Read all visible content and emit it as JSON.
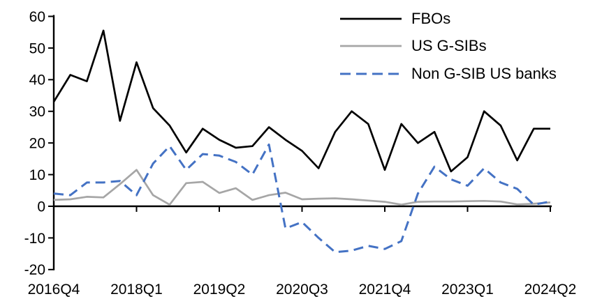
{
  "chart_data": {
    "type": "line",
    "title": "",
    "xlabel": "",
    "ylabel": "",
    "ylim": [
      -20,
      60
    ],
    "grid": false,
    "legend_position": "top-right",
    "background": "#ffffff",
    "axis_color": "#000000",
    "yticks": [
      60,
      50,
      40,
      30,
      20,
      10,
      0,
      -10,
      -20
    ],
    "xtick_labels": [
      "2016Q4",
      "2018Q1",
      "2019Q2",
      "2020Q3",
      "2021Q4",
      "2023Q1",
      "2024Q2"
    ],
    "x_categories": [
      "2016Q4",
      "2017Q1",
      "2017Q2",
      "2017Q3",
      "2017Q4",
      "2018Q1",
      "2018Q2",
      "2018Q3",
      "2018Q4",
      "2019Q1",
      "2019Q2",
      "2019Q3",
      "2019Q4",
      "2020Q1",
      "2020Q2",
      "2020Q3",
      "2020Q4",
      "2021Q1",
      "2021Q2",
      "2021Q3",
      "2021Q4",
      "2022Q1",
      "2022Q2",
      "2022Q3",
      "2022Q4",
      "2023Q1",
      "2023Q2",
      "2023Q3",
      "2023Q4",
      "2024Q1",
      "2024Q2"
    ],
    "series": [
      {
        "name": "FBOs",
        "color": "#000000",
        "style": "solid",
        "values": [
          33,
          41.5,
          39.5,
          55.5,
          27,
          45.5,
          31,
          25.5,
          17,
          24.5,
          21,
          18.5,
          19,
          25,
          21,
          17.5,
          12,
          23.5,
          30,
          26,
          11.5,
          26,
          20,
          23.5,
          11,
          15.5,
          30,
          25.5,
          14.5,
          24.5,
          24.5
        ]
      },
      {
        "name": "US G-SIBs",
        "color": "#a6a6a6",
        "style": "solid",
        "values": [
          2,
          2.2,
          3,
          2.8,
          7,
          11.5,
          3.5,
          0.5,
          7.3,
          7.7,
          4.2,
          5.7,
          2,
          3.5,
          4.3,
          2.2,
          2.4,
          2.5,
          2.2,
          1.8,
          1.4,
          0.5,
          1.4,
          1.5,
          1.5,
          1.6,
          1.7,
          1.5,
          0.6,
          0.8,
          1.2
        ]
      },
      {
        "name": "Non G-SIB US banks",
        "color": "#4472c4",
        "style": "dashed",
        "values": [
          4,
          3.5,
          7.5,
          7.5,
          8,
          3.5,
          13.5,
          19,
          11.5,
          16.5,
          16,
          14,
          10,
          19.5,
          -7,
          -5,
          -10,
          -14.5,
          -14,
          -12.5,
          -13.5,
          -11,
          4,
          12.5,
          8.5,
          6.5,
          12,
          7.5,
          5.5,
          0.5,
          1.5
        ]
      }
    ]
  }
}
